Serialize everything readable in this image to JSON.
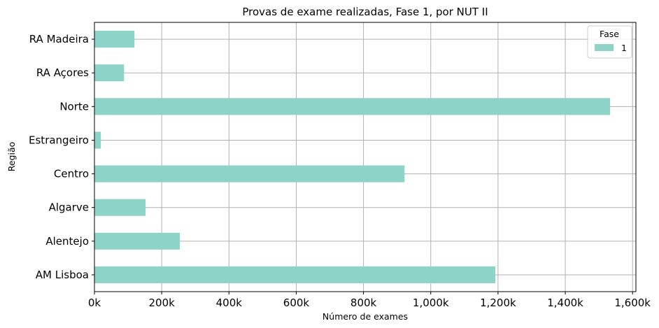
{
  "chart_data": {
    "type": "bar",
    "orientation": "horizontal",
    "title": "Provas de exame realizadas, Fase 1, por NUT II",
    "xlabel": "Número de exames",
    "ylabel": "Região",
    "categories": [
      "AM Lisboa",
      "Alentejo",
      "Algarve",
      "Centro",
      "Estrangeiro",
      "Norte",
      "RA Açores",
      "RA Madeira"
    ],
    "series": [
      {
        "name": "1",
        "color": "#8dd3c7",
        "values": [
          1192000,
          254000,
          152000,
          922000,
          19000,
          1533000,
          88000,
          119000
        ]
      }
    ],
    "xlim": [
      0,
      1610000
    ],
    "xticks": [
      0,
      200000,
      400000,
      600000,
      800000,
      1000000,
      1200000,
      1400000,
      1600000
    ],
    "xtick_labels": [
      "0k",
      "200k",
      "400k",
      "600k",
      "800k",
      "1,000k",
      "1,200k",
      "1,400k",
      "1,600k"
    ],
    "grid": true,
    "legend": {
      "title": "Fase",
      "placement": "top-right"
    }
  }
}
